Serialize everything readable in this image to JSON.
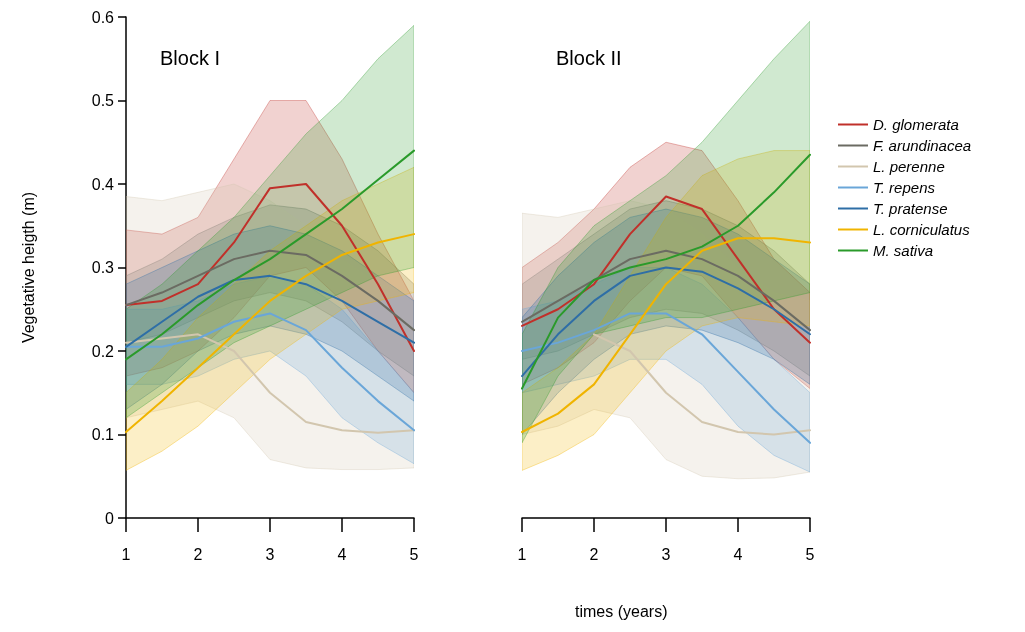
{
  "chart_data": [
    {
      "type": "line",
      "title": "Block I",
      "ylabel": "Vegetative heigth (m)",
      "x": [
        1,
        1.5,
        2,
        2.5,
        3,
        3.5,
        4,
        4.5,
        5
      ],
      "xlim": [
        1,
        5
      ],
      "xticks": [
        1,
        2,
        3,
        4,
        5
      ],
      "ylim": [
        0,
        0.6
      ],
      "yticks": [
        0,
        0.1,
        0.2,
        0.3,
        0.4,
        0.5,
        0.6
      ],
      "grid": false,
      "marker": "none",
      "line_style": "solid",
      "series": [
        {
          "color": "#c0302a",
          "values": [
            0.255,
            0.26,
            0.28,
            0.33,
            0.395,
            0.4,
            0.35,
            0.28,
            0.2
          ],
          "lower": [
            0.17,
            0.18,
            0.2,
            0.24,
            0.29,
            0.3,
            0.26,
            0.2,
            0.15
          ],
          "upper": [
            0.345,
            0.34,
            0.36,
            0.43,
            0.5,
            0.5,
            0.43,
            0.34,
            0.26
          ]
        },
        {
          "color": "#6b6b62",
          "values": [
            0.255,
            0.27,
            0.29,
            0.31,
            0.32,
            0.315,
            0.29,
            0.26,
            0.225
          ],
          "lower": [
            0.21,
            0.22,
            0.24,
            0.26,
            0.27,
            0.26,
            0.235,
            0.2,
            0.17
          ],
          "upper": [
            0.29,
            0.31,
            0.34,
            0.36,
            0.375,
            0.37,
            0.35,
            0.32,
            0.28
          ]
        },
        {
          "color": "#d2c6ae",
          "values": [
            0.21,
            0.215,
            0.22,
            0.2,
            0.15,
            0.115,
            0.105,
            0.102,
            0.105
          ],
          "lower": [
            0.12,
            0.13,
            0.14,
            0.12,
            0.07,
            0.06,
            0.058,
            0.058,
            0.06
          ],
          "upper": [
            0.385,
            0.38,
            0.39,
            0.4,
            0.38,
            0.35,
            0.31,
            0.28,
            0.27
          ]
        },
        {
          "color": "#6aa6d8",
          "values": [
            0.205,
            0.205,
            0.215,
            0.235,
            0.245,
            0.225,
            0.18,
            0.14,
            0.105
          ],
          "lower": [
            0.16,
            0.16,
            0.17,
            0.19,
            0.2,
            0.17,
            0.12,
            0.09,
            0.065
          ],
          "upper": [
            0.25,
            0.25,
            0.26,
            0.28,
            0.29,
            0.28,
            0.25,
            0.2,
            0.15
          ]
        },
        {
          "color": "#2e6ea6",
          "values": [
            0.205,
            0.235,
            0.265,
            0.285,
            0.29,
            0.28,
            0.26,
            0.235,
            0.21
          ],
          "lower": [
            0.13,
            0.16,
            0.2,
            0.22,
            0.23,
            0.22,
            0.2,
            0.17,
            0.14
          ],
          "upper": [
            0.28,
            0.3,
            0.32,
            0.34,
            0.35,
            0.34,
            0.32,
            0.29,
            0.26
          ]
        },
        {
          "color": "#f0b400",
          "values": [
            0.103,
            0.14,
            0.18,
            0.22,
            0.26,
            0.29,
            0.315,
            0.33,
            0.34
          ],
          "lower": [
            0.057,
            0.08,
            0.11,
            0.15,
            0.19,
            0.22,
            0.25,
            0.26,
            0.27
          ],
          "upper": [
            0.15,
            0.19,
            0.24,
            0.28,
            0.32,
            0.35,
            0.38,
            0.4,
            0.42
          ]
        },
        {
          "color": "#2a9a2a",
          "values": [
            0.19,
            0.22,
            0.255,
            0.285,
            0.31,
            0.34,
            0.37,
            0.405,
            0.44
          ],
          "lower": [
            0.12,
            0.15,
            0.18,
            0.21,
            0.23,
            0.25,
            0.27,
            0.29,
            0.3
          ],
          "upper": [
            0.25,
            0.28,
            0.32,
            0.36,
            0.41,
            0.46,
            0.5,
            0.55,
            0.59
          ]
        }
      ]
    },
    {
      "type": "line",
      "title": "Block II",
      "xlabel": "times (years)",
      "x": [
        1,
        1.5,
        2,
        2.5,
        3,
        3.5,
        4,
        4.5,
        5
      ],
      "xlim": [
        1,
        5
      ],
      "xticks": [
        1,
        2,
        3,
        4,
        5
      ],
      "ylim": [
        0,
        0.6
      ],
      "tick_labels": "x",
      "grid": false,
      "marker": "none",
      "line_style": "solid",
      "legend": "right",
      "series": [
        {
          "name": "D. glomerata",
          "color": "#c0302a",
          "values": [
            0.23,
            0.25,
            0.28,
            0.34,
            0.385,
            0.37,
            0.31,
            0.25,
            0.21
          ],
          "lower": [
            0.16,
            0.18,
            0.21,
            0.26,
            0.3,
            0.29,
            0.24,
            0.19,
            0.155
          ],
          "upper": [
            0.3,
            0.33,
            0.37,
            0.42,
            0.45,
            0.44,
            0.38,
            0.31,
            0.27
          ]
        },
        {
          "name": "F. arundinacea",
          "color": "#6b6b62",
          "values": [
            0.235,
            0.26,
            0.285,
            0.31,
            0.32,
            0.31,
            0.29,
            0.26,
            0.225
          ],
          "lower": [
            0.19,
            0.2,
            0.22,
            0.24,
            0.25,
            0.245,
            0.225,
            0.2,
            0.17
          ],
          "upper": [
            0.28,
            0.31,
            0.34,
            0.37,
            0.38,
            0.37,
            0.35,
            0.32,
            0.28
          ]
        },
        {
          "name": "L. perenne",
          "color": "#d2c6ae",
          "values": [
            null,
            null,
            0.22,
            0.2,
            0.15,
            0.115,
            0.103,
            0.1,
            0.105
          ],
          "lower": [
            0.1,
            0.11,
            0.13,
            0.12,
            0.07,
            0.05,
            0.047,
            0.048,
            0.055
          ],
          "upper": [
            0.365,
            0.36,
            0.37,
            0.38,
            0.37,
            0.34,
            0.3,
            0.27,
            0.26
          ]
        },
        {
          "name": "T. repens",
          "color": "#6aa6d8",
          "values": [
            0.2,
            0.21,
            0.225,
            0.245,
            0.245,
            0.22,
            0.175,
            0.13,
            0.09
          ],
          "lower": [
            0.15,
            0.16,
            0.17,
            0.19,
            0.19,
            0.16,
            0.11,
            0.075,
            0.055
          ],
          "upper": [
            0.25,
            0.26,
            0.28,
            0.3,
            0.3,
            0.28,
            0.24,
            0.19,
            0.15
          ]
        },
        {
          "name": "T. pratense",
          "color": "#2e6ea6",
          "values": [
            0.17,
            0.22,
            0.26,
            0.29,
            0.3,
            0.295,
            0.275,
            0.25,
            0.22
          ],
          "lower": [
            0.1,
            0.15,
            0.19,
            0.22,
            0.23,
            0.225,
            0.21,
            0.19,
            0.16
          ],
          "upper": [
            0.24,
            0.29,
            0.33,
            0.36,
            0.37,
            0.36,
            0.34,
            0.31,
            0.28
          ]
        },
        {
          "name": "L. corniculatus",
          "color": "#f0b400",
          "values": [
            0.103,
            0.125,
            0.16,
            0.22,
            0.28,
            0.32,
            0.335,
            0.335,
            0.33
          ],
          "lower": [
            0.057,
            0.075,
            0.1,
            0.15,
            0.2,
            0.23,
            0.24,
            0.235,
            0.23
          ],
          "upper": [
            0.15,
            0.18,
            0.22,
            0.29,
            0.36,
            0.41,
            0.43,
            0.44,
            0.44
          ]
        },
        {
          "name": "M. sativa",
          "color": "#2a9a2a",
          "values": [
            0.155,
            0.24,
            0.285,
            0.3,
            0.31,
            0.325,
            0.35,
            0.39,
            0.435
          ],
          "lower": [
            0.09,
            0.17,
            0.22,
            0.23,
            0.24,
            0.24,
            0.25,
            0.26,
            0.27
          ],
          "upper": [
            0.22,
            0.3,
            0.35,
            0.38,
            0.41,
            0.45,
            0.5,
            0.55,
            0.595
          ]
        }
      ]
    }
  ]
}
